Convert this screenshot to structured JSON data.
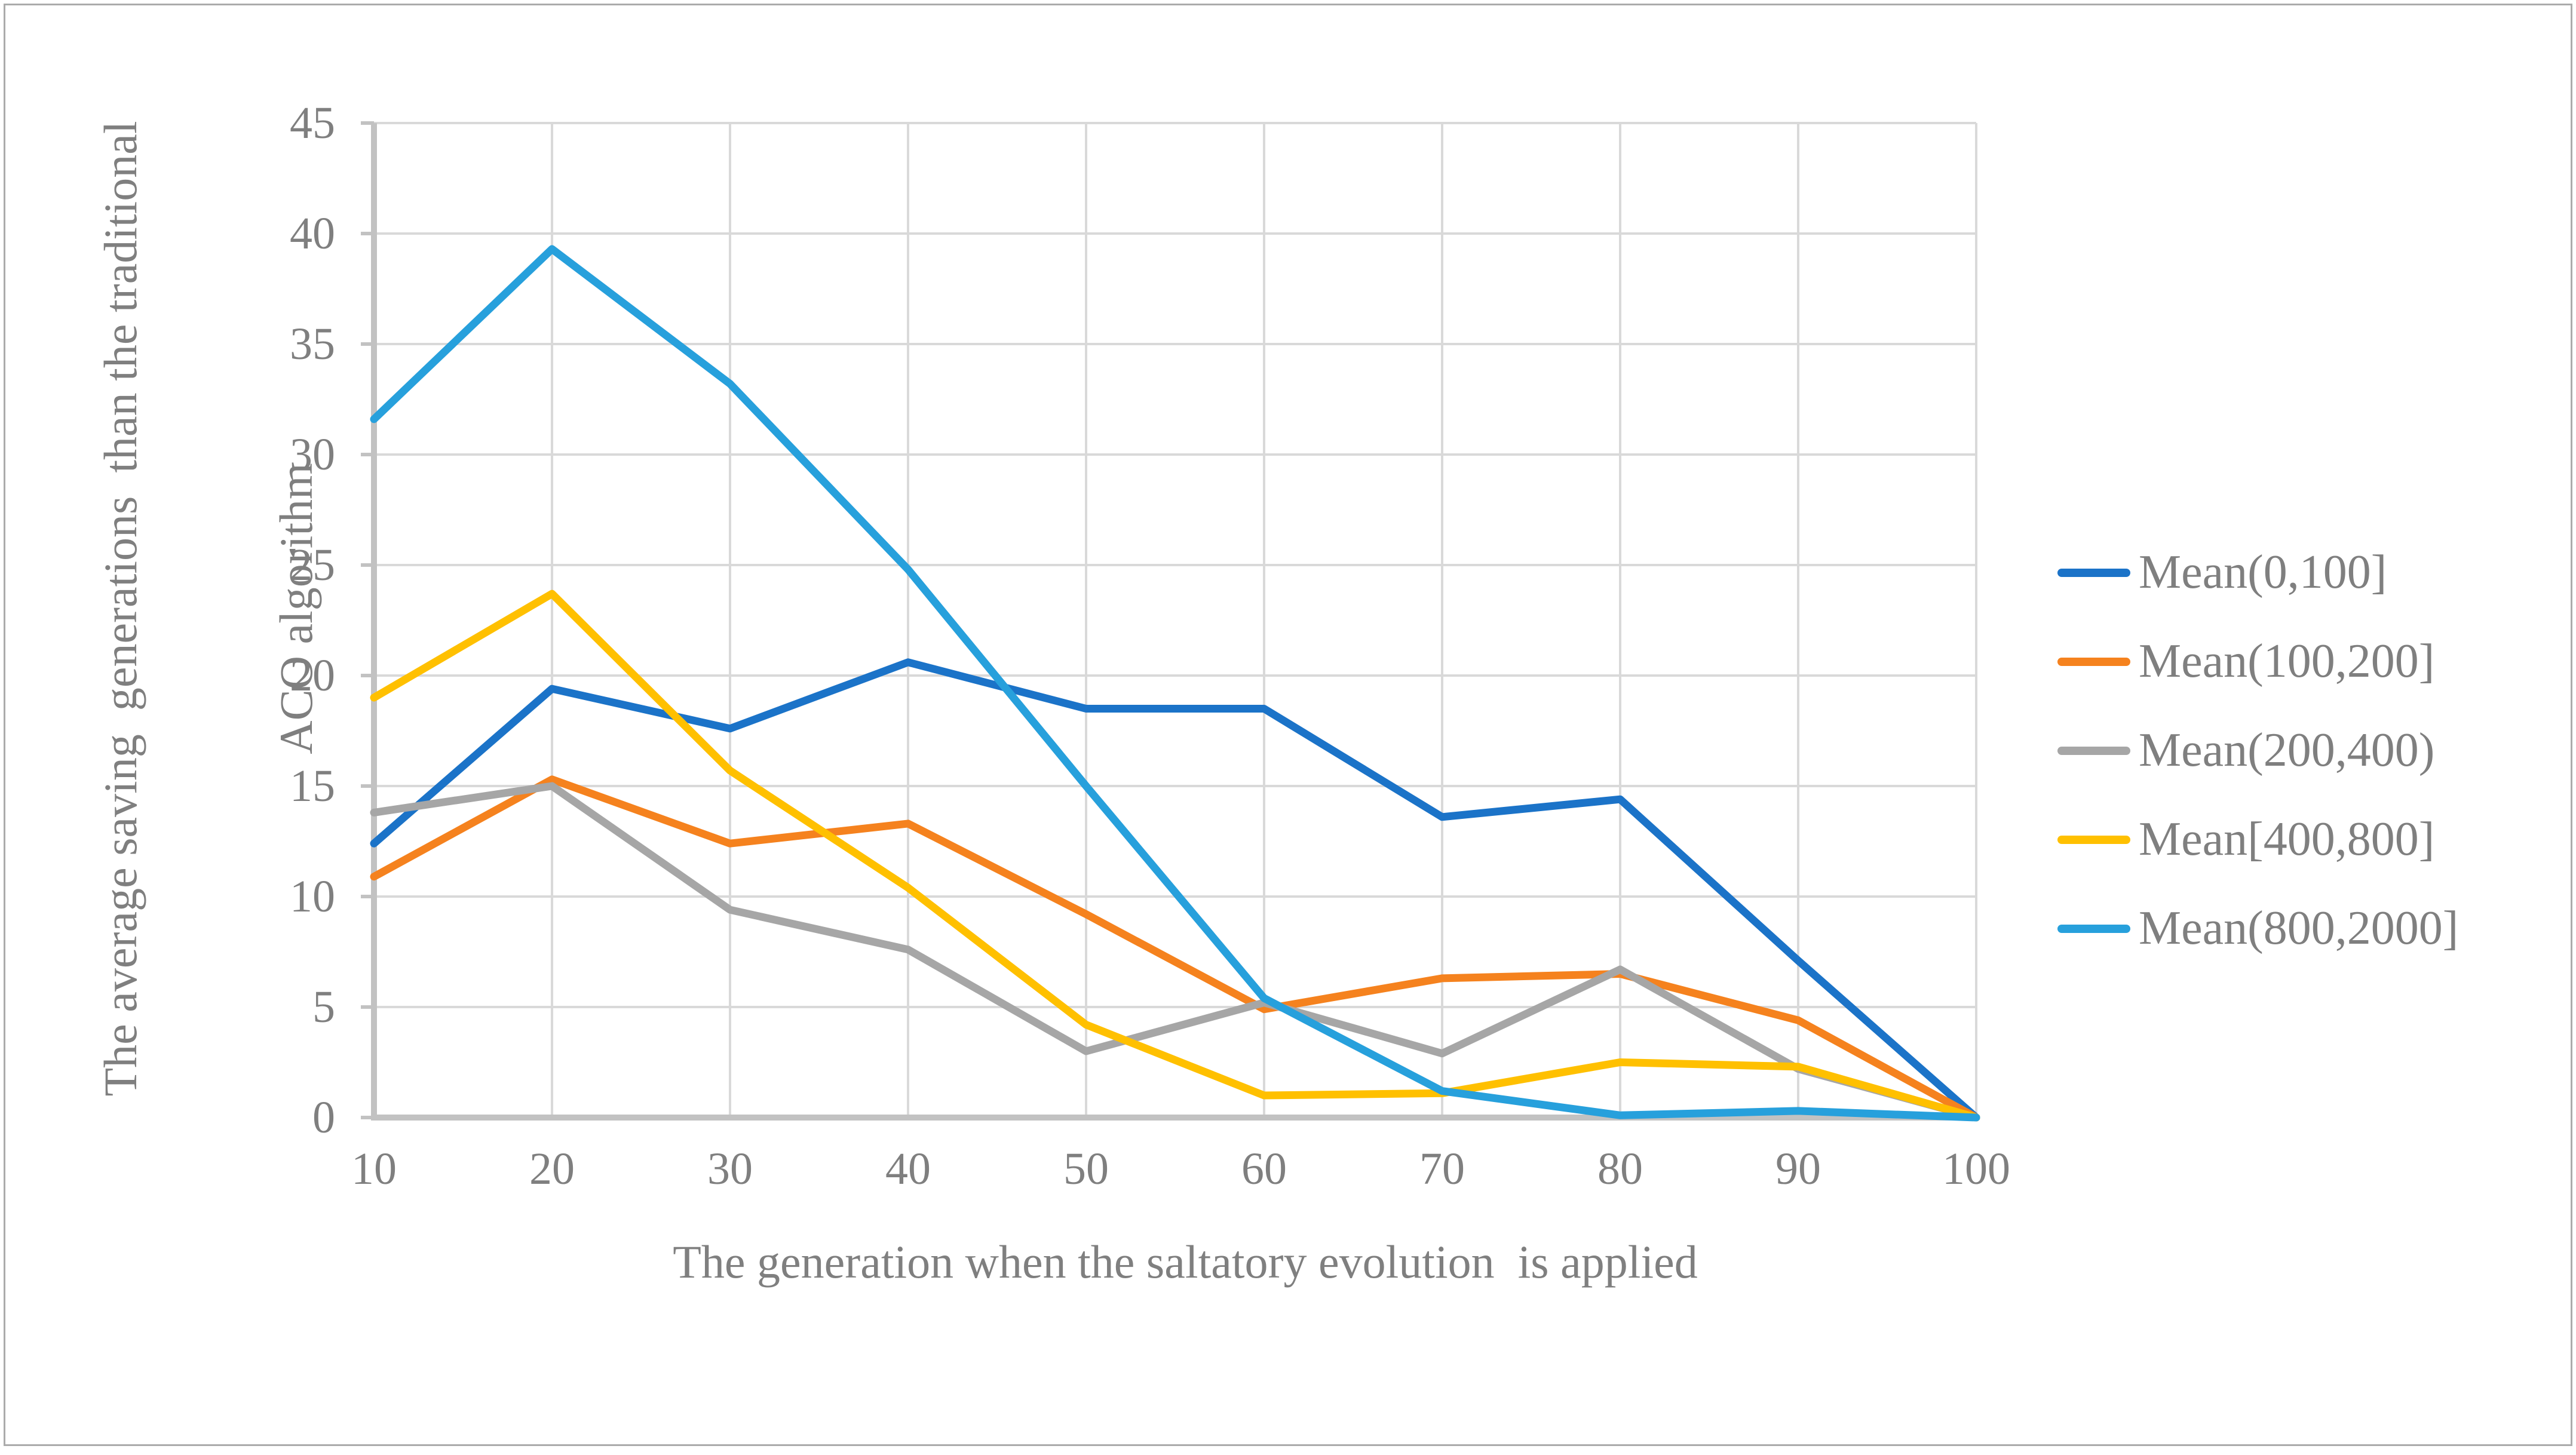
{
  "figure": {
    "background": "#FFFFFF",
    "border_color": "#ABABAB"
  },
  "chart_data": {
    "type": "line",
    "title": "",
    "xlabel": "The generation when the saltatory evolution  is applied",
    "ylabel_lines": [
      "The average saving  generations  than the traditional",
      "ACO algorithm"
    ],
    "x": [
      10,
      20,
      30,
      40,
      50,
      60,
      70,
      80,
      90,
      100
    ],
    "x_ticks": [
      "10",
      "20",
      "30",
      "40",
      "50",
      "60",
      "70",
      "80",
      "90",
      "100"
    ],
    "y_ticks": [
      "0",
      "5",
      "10",
      "15",
      "20",
      "25",
      "30",
      "35",
      "40",
      "45"
    ],
    "xlim": [
      10,
      100
    ],
    "ylim": [
      0,
      45
    ],
    "y_tick_step": 5,
    "grid": true,
    "legend_position": "right",
    "series": [
      {
        "name": "Mean(0,100]",
        "color": "#1B73C8",
        "values": [
          12.4,
          19.4,
          17.6,
          20.6,
          18.5,
          18.5,
          13.6,
          14.4,
          7.1,
          0
        ]
      },
      {
        "name": "Mean(100,200]",
        "color": "#F5821E",
        "values": [
          10.9,
          15.3,
          12.4,
          13.3,
          9.2,
          4.9,
          6.3,
          6.5,
          4.4,
          0
        ]
      },
      {
        "name": "Mean(200,400)",
        "color": "#A6A6A6",
        "values": [
          13.8,
          15.0,
          9.4,
          7.6,
          3.0,
          5.2,
          2.9,
          6.7,
          2.2,
          0
        ]
      },
      {
        "name": "Mean[400,800]",
        "color": "#FFC000",
        "values": [
          19.0,
          23.7,
          15.7,
          10.4,
          4.2,
          1.0,
          1.1,
          2.5,
          2.3,
          0
        ]
      },
      {
        "name": "Mean(800,2000]",
        "color": "#27A0DC",
        "values": [
          31.6,
          39.3,
          33.2,
          24.8,
          15.0,
          5.4,
          1.2,
          0.1,
          0.3,
          0
        ]
      }
    ],
    "colors": {
      "gridline": "#D9D9D9",
      "axis": "#C2C2C2",
      "text": "#7F7F7F"
    }
  }
}
